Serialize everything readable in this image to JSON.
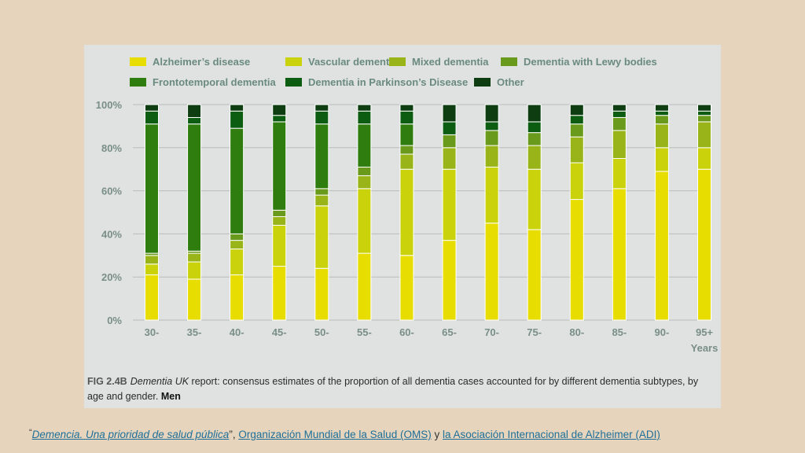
{
  "chart_data": {
    "type": "bar",
    "stacked": true,
    "normalized": true,
    "categories": [
      "30-",
      "35-",
      "40-",
      "45-",
      "50-",
      "55-",
      "60-",
      "65-",
      "70-",
      "75-",
      "80-",
      "85-",
      "90-",
      "95+"
    ],
    "x_extra_label": "Years",
    "ylim": [
      0,
      100
    ],
    "yticks": [
      "0%",
      "20%",
      "40%",
      "60%",
      "80%",
      "100%"
    ],
    "grid": true,
    "legend_position": "top",
    "series": [
      {
        "name": "Alzheimer’s disease",
        "color": "#e8dd00",
        "values": [
          21,
          19,
          21,
          25,
          24,
          31,
          30,
          37,
          45,
          42,
          56,
          61,
          69,
          70
        ]
      },
      {
        "name": "Vascular dementia",
        "color": "#c9d20b",
        "values": [
          5,
          8,
          12,
          19,
          29,
          30,
          40,
          33,
          26,
          28,
          17,
          14,
          11,
          10
        ]
      },
      {
        "name": "Mixed dementia",
        "color": "#98b418",
        "values": [
          4,
          4,
          4,
          4,
          5,
          6,
          7,
          10,
          10,
          11,
          12,
          13,
          11,
          12
        ]
      },
      {
        "name": "Dementia with Lewy bodies",
        "color": "#6a9a1c",
        "values": [
          1,
          1,
          3,
          3,
          3,
          4,
          4,
          6,
          7,
          6,
          6,
          6,
          4,
          3
        ]
      },
      {
        "name": "Frontotemporal dementia",
        "color": "#2e7d0e",
        "values": [
          60,
          59,
          49,
          41,
          30,
          20,
          10,
          0,
          0,
          0,
          0,
          0,
          0,
          0
        ]
      },
      {
        "name": "Dementia in Parkinson’s Disease",
        "color": "#0c5d12",
        "values": [
          6,
          3,
          8,
          3,
          6,
          6,
          6,
          6,
          4,
          5,
          4,
          3,
          2,
          2
        ]
      },
      {
        "name": "Other",
        "color": "#0d3d10",
        "values": [
          3,
          6,
          3,
          5,
          3,
          3,
          3,
          8,
          8,
          8,
          5,
          3,
          3,
          3
        ]
      }
    ]
  },
  "caption": {
    "fig_label": "FIG 2.4B",
    "italic_part": "Dementia UK",
    "text": " report: consensus estimates of the proportion of all dementia cases accounted for by different dementia subtypes, by age and gender. ",
    "bold_part": "Men"
  },
  "footer": {
    "open_quote": "“",
    "link1": "Demencia. Una prioridad de salud pública",
    "sep1": "”, ",
    "link2": "Organización Mundial de la Salud (OMS)",
    "sep2": " y ",
    "link3": "la Asociación Internacional de Alzheimer (ADI)"
  }
}
